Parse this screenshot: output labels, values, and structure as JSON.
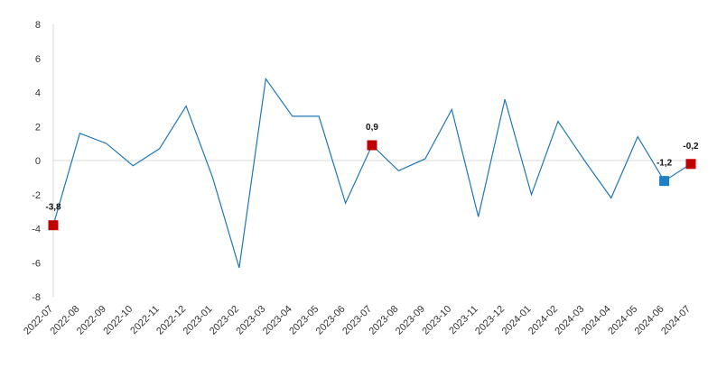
{
  "chart_data": {
    "type": "line",
    "title": "",
    "xlabel": "",
    "ylabel": "",
    "ylim": [
      -8,
      8
    ],
    "yticks": [
      "8",
      "6",
      "4",
      "2",
      "0",
      "-2",
      "-4",
      "-6",
      "-8"
    ],
    "grid": false,
    "legend": "none",
    "line_color": "#1f77b4",
    "categories": [
      "2022-07",
      "2022-08",
      "2022-09",
      "2022-10",
      "2022-11",
      "2022-12",
      "2023-01",
      "2023-02",
      "2023-03",
      "2023-04",
      "2023-05",
      "2023-06",
      "2023-07",
      "2023-08",
      "2023-09",
      "2023-10",
      "2023-11",
      "2023-12",
      "2024-01",
      "2024-02",
      "2024-03",
      "2024-04",
      "2024-05",
      "2024-06",
      "2024-07"
    ],
    "values": [
      -3.8,
      1.6,
      1.0,
      -0.3,
      0.7,
      3.2,
      -1.0,
      -6.3,
      4.8,
      2.6,
      2.6,
      -2.5,
      0.9,
      -0.6,
      0.1,
      3.0,
      -3.3,
      3.6,
      -2.0,
      2.3,
      0.0,
      -2.2,
      1.4,
      -1.2,
      -0.2
    ],
    "markers": [
      {
        "index": 0,
        "label": "-3,8",
        "color": "#c00000"
      },
      {
        "index": 12,
        "label": "0,9",
        "color": "#c00000"
      },
      {
        "index": 23,
        "label": "-1,2",
        "color": "#1f7fc4"
      },
      {
        "index": 24,
        "label": "-0,2",
        "color": "#c00000"
      }
    ]
  }
}
